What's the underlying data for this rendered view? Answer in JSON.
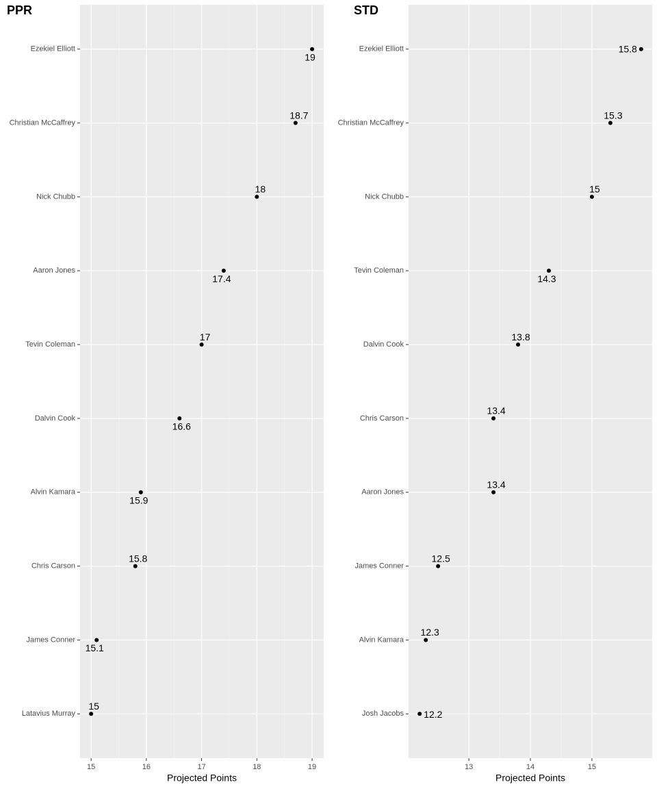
{
  "chart_data": [
    {
      "type": "dot",
      "title": "PPR",
      "x_label": "Projected Points",
      "categories": [
        "Ezekiel Elliott",
        "Christian McCaffrey",
        "Nick Chubb",
        "Aaron Jones",
        "Tevin Coleman",
        "Dalvin Cook",
        "Alvin Kamara",
        "Chris Carson",
        "James Conner",
        "Latavius Murray"
      ],
      "values": [
        19,
        18.7,
        18,
        17.4,
        17,
        16.6,
        15.9,
        15.8,
        15.1,
        15
      ],
      "color": "#000000",
      "xlim": [
        14.8,
        19.21
      ],
      "xticks": [
        15,
        16,
        17,
        18,
        19
      ],
      "grid": true
    },
    {
      "type": "dot",
      "title": "STD",
      "x_label": "Projected Points",
      "categories": [
        "Ezekiel Elliott",
        "Christian McCaffrey",
        "Nick Chubb",
        "Tevin Coleman",
        "Dalvin Cook",
        "Chris Carson",
        "Aaron Jones",
        "James Conner",
        "Alvin Kamara",
        "Josh Jacobs"
      ],
      "values": [
        15.8,
        15.3,
        15,
        14.3,
        13.8,
        13.4,
        13.4,
        12.5,
        12.3,
        12.2
      ],
      "color": "#000000",
      "xlim": [
        12.02,
        15.98
      ],
      "xticks": [
        13,
        14,
        15
      ],
      "grid": true
    }
  ]
}
